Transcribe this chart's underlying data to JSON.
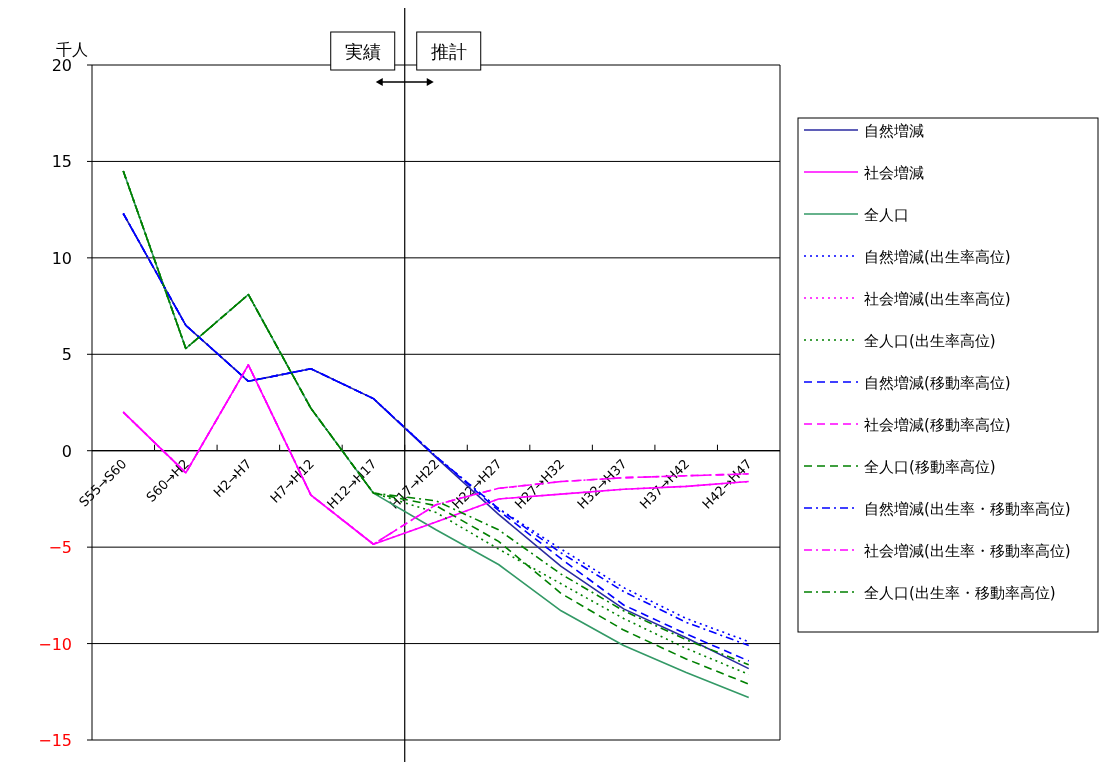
{
  "chart_data": {
    "type": "line",
    "ylabel": "千人",
    "categories": [
      "S55→S60",
      "S60→H2",
      "H2→H7",
      "H7→H12",
      "H12→H17",
      "H17→H22",
      "H22→H27",
      "H27→H32",
      "H32→H37",
      "H37→H42",
      "H42→H47"
    ],
    "ylim": [
      -15,
      20
    ],
    "yticks": [
      20,
      15,
      10,
      5,
      0,
      {
        "value": -5,
        "label": "−5"
      },
      {
        "value": -10,
        "label": "−10"
      },
      {
        "value": -15,
        "label": "−15"
      }
    ],
    "grid": "y",
    "legend": "right",
    "annotations": [
      "実績",
      "推計"
    ],
    "series": [
      {
        "name": "自然増減",
        "color": "#2a2aa0",
        "line_style": "solid",
        "values": [
          12.3,
          6.5,
          3.6,
          4.25,
          2.7,
          -0.35,
          -3.3,
          -6.0,
          -8.2,
          -9.7,
          -11.3
        ]
      },
      {
        "name": "社会増減",
        "color": "#ff00ff",
        "line_style": "solid",
        "values": [
          2.0,
          -1.15,
          4.45,
          -2.3,
          -4.85,
          -3.7,
          -2.5,
          -2.25,
          -2.0,
          -1.85,
          -1.6
        ]
      },
      {
        "name": "全人口",
        "color": "#339966",
        "line_style": "solid",
        "values": [
          14.5,
          5.3,
          8.1,
          2.2,
          -2.2,
          -4.1,
          -5.9,
          -8.3,
          -10.1,
          -11.5,
          -12.8
        ]
      },
      {
        "name": "自然増減(出生率高位)",
        "color": "#0000ff",
        "line_style": "dotted",
        "values": [
          12.3,
          6.5,
          3.6,
          4.25,
          2.7,
          -0.3,
          -3.0,
          -5.1,
          -7.1,
          -8.7,
          -9.9
        ]
      },
      {
        "name": "社会増減(出生率高位)",
        "color": "#ff00ff",
        "line_style": "dotted",
        "values": [
          2.0,
          -1.15,
          4.45,
          -2.3,
          -4.85,
          -3.7,
          -2.5,
          -2.25,
          -2.0,
          -1.85,
          -1.6
        ]
      },
      {
        "name": "全人口(出生率高位)",
        "color": "#008000",
        "line_style": "dotted",
        "values": [
          14.5,
          5.3,
          8.1,
          2.2,
          -2.2,
          -3.2,
          -5.1,
          -6.9,
          -8.7,
          -10.25,
          -11.6
        ]
      },
      {
        "name": "自然増減(移動率高位)",
        "color": "#0000ff",
        "line_style": "dashed",
        "values": [
          12.3,
          6.5,
          3.6,
          4.25,
          2.7,
          -0.3,
          -3.1,
          -5.6,
          -8.0,
          -9.5,
          -10.9
        ]
      },
      {
        "name": "社会増減(移動率高位)",
        "color": "#ff00ff",
        "line_style": "dashed",
        "values": [
          2.0,
          -1.15,
          4.45,
          -2.3,
          -4.85,
          -2.8,
          -1.95,
          -1.6,
          -1.4,
          -1.3,
          -1.2
        ]
      },
      {
        "name": "全人口(移動率高位)",
        "color": "#008000",
        "line_style": "dashed",
        "values": [
          14.5,
          5.3,
          8.1,
          2.2,
          -2.2,
          -2.85,
          -4.7,
          -7.4,
          -9.3,
          -10.8,
          -12.1
        ]
      },
      {
        "name": "自然増減(出生率・移動率高位)",
        "color": "#0000ff",
        "line_style": "dashdot",
        "values": [
          12.3,
          6.5,
          3.6,
          4.25,
          2.7,
          -0.3,
          -3.0,
          -5.3,
          -7.3,
          -8.9,
          -10.1
        ]
      },
      {
        "name": "社会増減(出生率・移動率高位)",
        "color": "#ff00ff",
        "line_style": "dashdot",
        "values": [
          2.0,
          -1.15,
          4.45,
          -2.3,
          -4.85,
          -2.8,
          -1.95,
          -1.6,
          -1.4,
          -1.3,
          -1.2
        ]
      },
      {
        "name": "全人口(出生率・移動率高位)",
        "color": "#008000",
        "line_style": "dashdot",
        "values": [
          14.5,
          5.3,
          8.1,
          2.2,
          -2.2,
          -2.6,
          -4.1,
          -6.4,
          -8.3,
          -9.8,
          -11.1
        ]
      }
    ]
  }
}
